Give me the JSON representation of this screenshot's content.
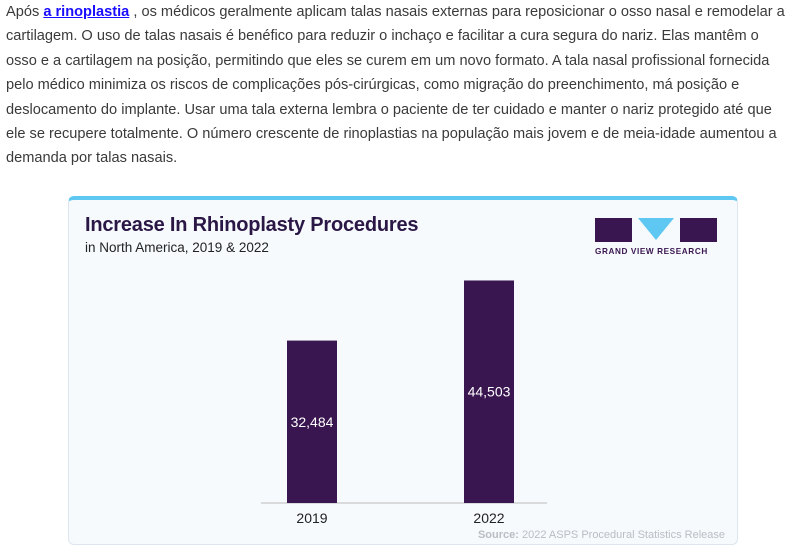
{
  "article": {
    "link_text": "a rinoplastia",
    "first_prefix": "Após ",
    "first_suffix": " , os médicos geralmente aplicam talas nasais externas para reposicionar o osso nasal e remodelar a",
    "lines": [
      "cartilagem. O uso de talas nasais é benéfico para reduzir o inchaço e facilitar a cura segura do nariz. Elas mantêm o",
      "osso e a cartilagem na posição, permitindo que eles se curem em um novo formato. A tala nasal profissional fornecida",
      "pelo médico minimiza os riscos de complicações pós-cirúrgicas, como migração do preenchimento, má posição e",
      "deslocamento do implante. Usar uma tala externa lembra o paciente de ter cuidado e manter o nariz protegido até que",
      "ele se recupere totalmente. O número crescente de rinoplastias na população mais jovem e de meia-idade aumentou a",
      "demanda por talas nasais."
    ]
  },
  "logo": {
    "text": "GRAND VIEW RESEARCH"
  },
  "chart_data": {
    "type": "bar",
    "title": "Increase In Rhinoplasty Procedures",
    "subtitle": "in North America, 2019 & 2022",
    "categories": [
      "2019",
      "2022"
    ],
    "values": [
      32484,
      44503
    ],
    "value_labels": [
      "32,484",
      "44,503"
    ],
    "xlabel": "",
    "ylabel": "",
    "ylim": [
      0,
      50000
    ],
    "grid": false,
    "bar_color": "#3a1650",
    "source_label": "Source:",
    "source_text": " 2022 ASPS Procedural Statistics Release"
  }
}
